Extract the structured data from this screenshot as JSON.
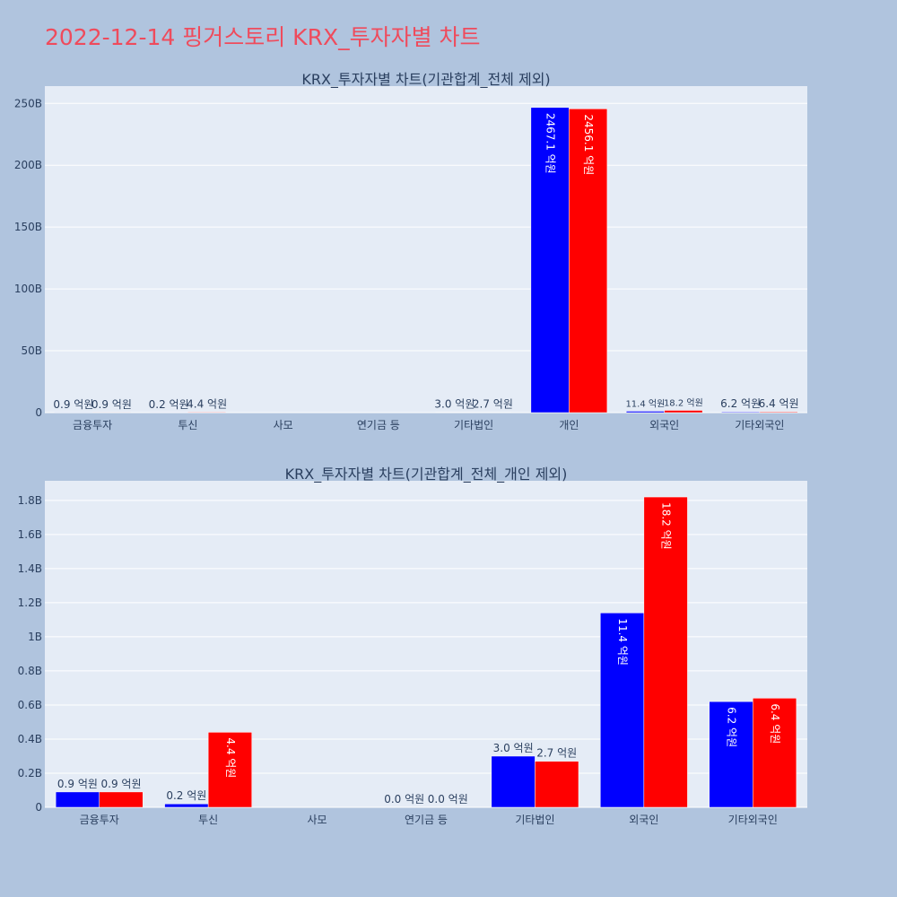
{
  "page": {
    "title": "2022-12-14 핑거스토리 KRX_투자자별 차트"
  },
  "colors": {
    "buy": "#0000ff",
    "sell": "#ff0000",
    "plot_bg": "#e5ecf6",
    "paper_bg": "#b0c4de",
    "title": "#ef4b5c"
  },
  "chart_data": [
    {
      "type": "bar",
      "title": "KRX_투자자별 차트(기관합계_전체 제외)",
      "categories": [
        "금융투자",
        "투신",
        "사모",
        "연기금 등",
        "기타법인",
        "개인",
        "외국인",
        "기타외국인"
      ],
      "series": [
        {
          "color": "#0000ff",
          "values": [
            90000000,
            20000000,
            0,
            0,
            300000000,
            246710000000,
            1140000000,
            620000000
          ],
          "labels": [
            "0.9 억원",
            "0.2 억원",
            "",
            "",
            "3.0 억원",
            "2467.1 억원",
            "11.4 억원",
            "6.2 억원"
          ]
        },
        {
          "color": "#ff0000",
          "values": [
            90000000,
            440000000,
            0,
            0,
            270000000,
            245610000000,
            1820000000,
            640000000
          ],
          "labels": [
            "0.9 억원",
            "4.4 억원",
            "",
            "",
            "2.7 억원",
            "2456.1 억원",
            "18.2 억원",
            "6.4 억원"
          ]
        }
      ],
      "ylim": [
        0,
        264000000000
      ],
      "ytick_values": [
        0,
        50000000000,
        100000000000,
        150000000000,
        200000000000,
        250000000000
      ],
      "ytick_labels": [
        "0",
        "50B",
        "100B",
        "150B",
        "200B",
        "250B"
      ],
      "grid": true
    },
    {
      "type": "bar",
      "title": "KRX_투자자별 차트(기관합계_전체_개인 제외)",
      "categories": [
        "금융투자",
        "투신",
        "사모",
        "연기금 등",
        "기타법인",
        "외국인",
        "기타외국인"
      ],
      "series": [
        {
          "color": "#0000ff",
          "values": [
            90000000,
            20000000,
            0,
            0,
            300000000,
            1140000000,
            620000000
          ],
          "labels": [
            "0.9 억원",
            "0.2 억원",
            "",
            "0.0 억원",
            "3.0 억원",
            "11.4 억원",
            "6.2 억원"
          ]
        },
        {
          "color": "#ff0000",
          "values": [
            90000000,
            440000000,
            0,
            0,
            270000000,
            1820000000,
            640000000
          ],
          "labels": [
            "0.9 억원",
            "4.4 억원",
            "",
            "0.0 억원",
            "2.7 억원",
            "18.2 억원",
            "6.4 억원"
          ]
        }
      ],
      "ylim": [
        0,
        1915000000
      ],
      "ytick_values": [
        0,
        200000000,
        400000000,
        600000000,
        800000000,
        1000000000,
        1200000000,
        1400000000,
        1600000000,
        1800000000
      ],
      "ytick_labels": [
        "0",
        "0.2B",
        "0.4B",
        "0.6B",
        "0.8B",
        "1B",
        "1.2B",
        "1.4B",
        "1.6B",
        "1.8B"
      ],
      "grid": true
    }
  ]
}
